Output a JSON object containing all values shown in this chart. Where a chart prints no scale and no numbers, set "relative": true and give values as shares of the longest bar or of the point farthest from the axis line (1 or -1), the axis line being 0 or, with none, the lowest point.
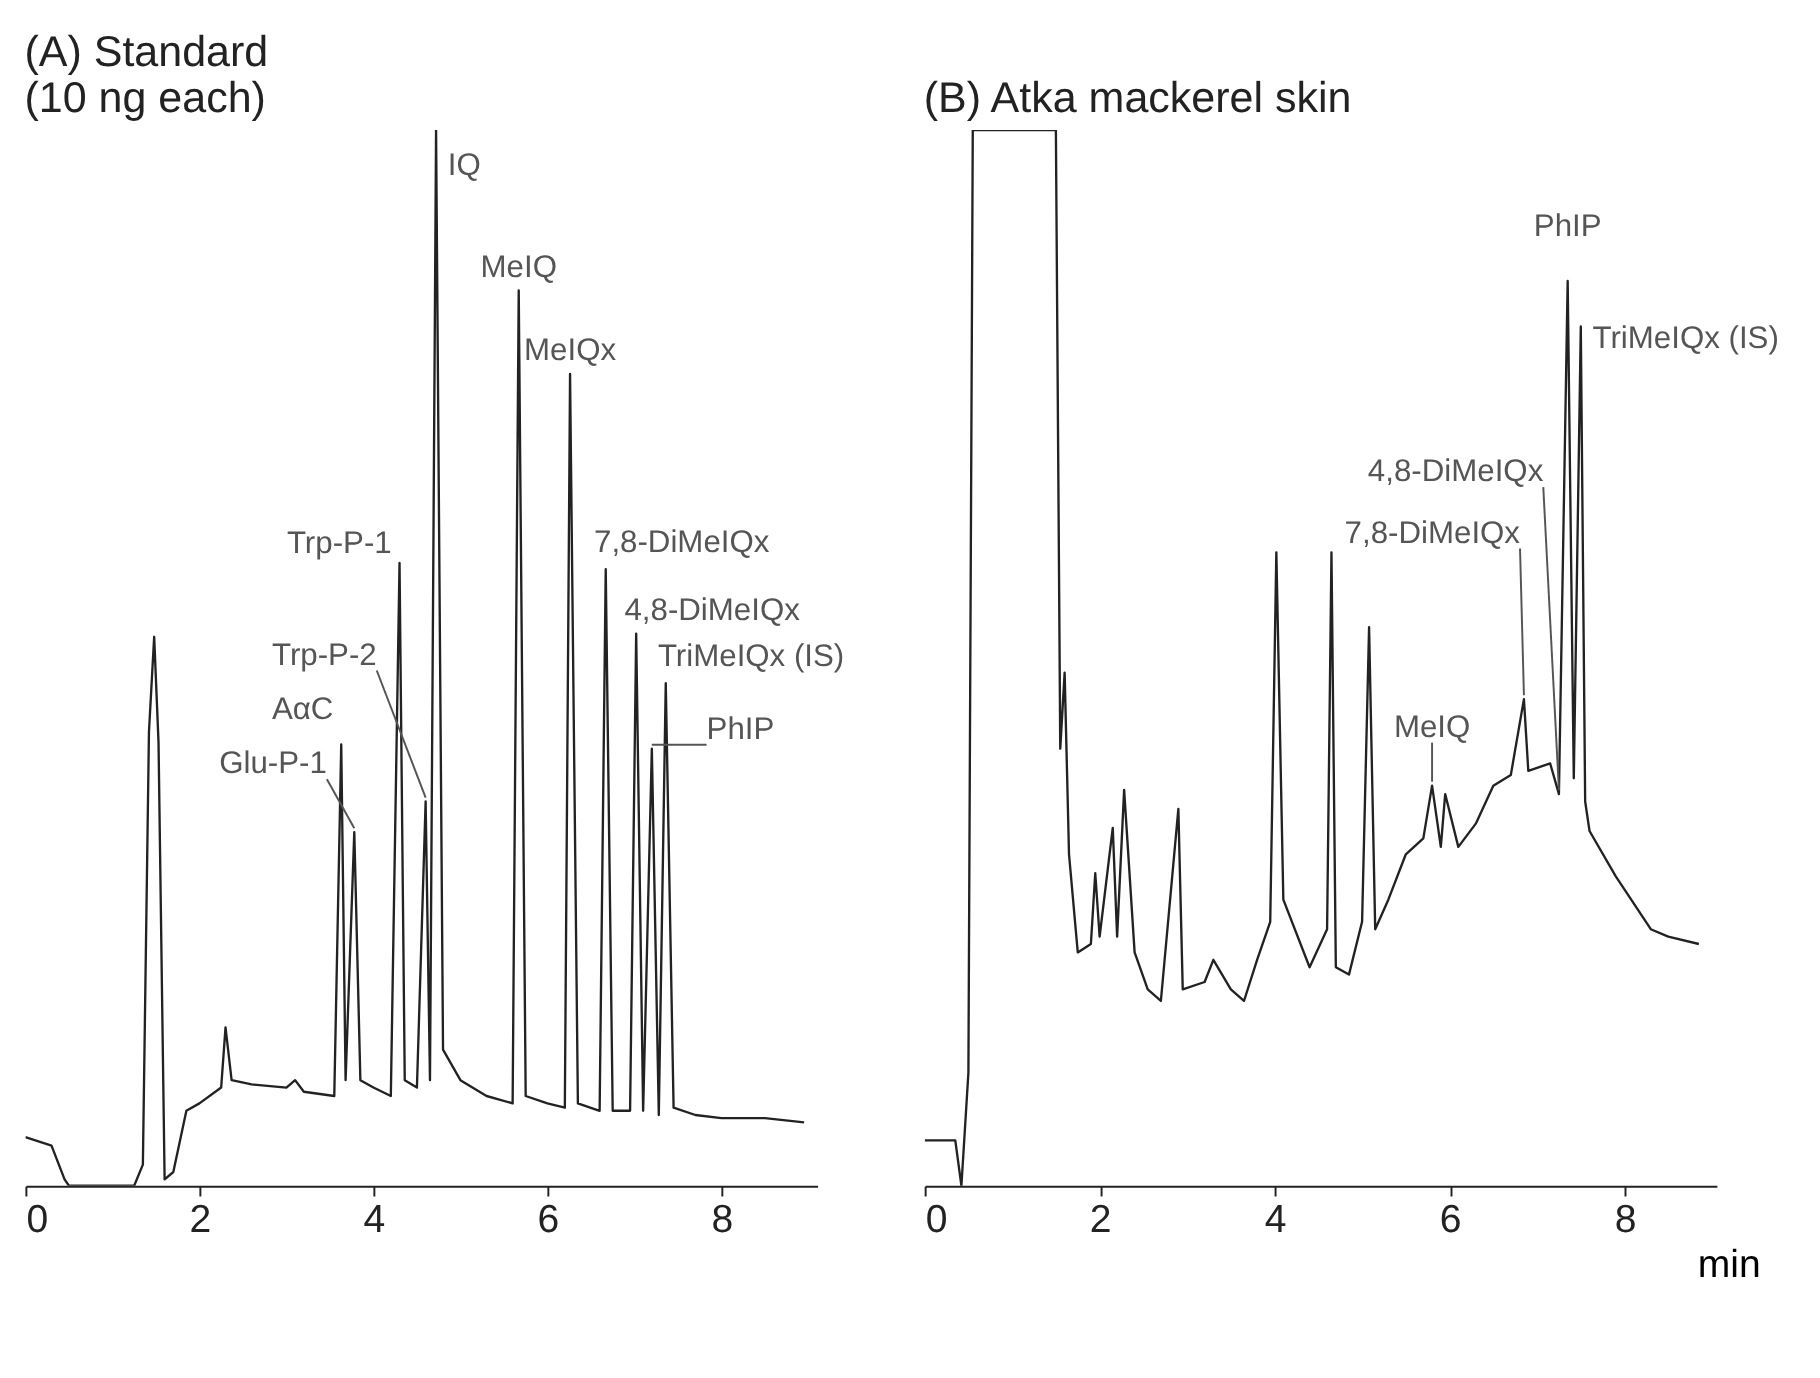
{
  "chart_data": [
    {
      "type": "line",
      "title": "(A)  Standard",
      "subtitle": "(10 ng each)",
      "relative": true,
      "xlim": [
        0,
        9.1
      ],
      "xticks": [
        0,
        2,
        4,
        6,
        8
      ],
      "grid": false,
      "marker": "none",
      "tick_labels": "x",
      "series": [
        {
          "color": "#222222",
          "x": [
            0,
            0.3,
            0.45,
            0.5,
            1.25,
            1.35,
            1.42,
            1.48,
            1.53,
            1.6,
            1.7,
            1.85,
            2.0,
            2.25,
            2.3,
            2.37,
            2.6,
            3.0,
            3.1,
            3.2,
            3.55,
            3.63,
            3.68,
            3.78,
            3.85,
            4.0,
            4.2,
            4.3,
            4.36,
            4.5,
            4.6,
            4.65,
            4.72,
            4.8,
            5.0,
            5.3,
            5.6,
            5.67,
            5.75,
            6.0,
            6.2,
            6.26,
            6.35,
            6.6,
            6.67,
            6.75,
            6.95,
            7.02,
            7.1,
            7.2,
            7.28,
            7.36,
            7.45,
            7.7,
            8.0,
            8.5,
            8.95
          ],
          "values": [
            0.046,
            0.038,
            0.006,
            0,
            0,
            0.02,
            0.43,
            0.52,
            0.42,
            0.006,
            0.013,
            0.071,
            0.078,
            0.093,
            0.15,
            0.1,
            0.096,
            0.093,
            0.1,
            0.089,
            0.085,
            0.418,
            0.1,
            0.335,
            0.1,
            0.093,
            0.085,
            0.59,
            0.1,
            0.093,
            0.364,
            0.1,
            1.0,
            0.129,
            0.1,
            0.085,
            0.078,
            0.848,
            0.085,
            0.078,
            0.074,
            0.769,
            0.078,
            0.071,
            0.584,
            0.071,
            0.071,
            0.523,
            0.071,
            0.414,
            0.067,
            0.476,
            0.074,
            0.067,
            0.064,
            0.064,
            0.06
          ]
        }
      ],
      "annotations": [
        {
          "text": "IQ",
          "x": 4.72,
          "y": 1.0
        },
        {
          "text": "MeIQ",
          "x": 5.67,
          "y": 0.848
        },
        {
          "text": "MeIQx",
          "x": 6.26,
          "y": 0.769
        },
        {
          "text": "Trp-P-1",
          "x": 4.3,
          "y": 0.59
        },
        {
          "text": "7,8-DiMeIQx",
          "x": 6.67,
          "y": 0.584
        },
        {
          "text": "Trp-P-2",
          "x": 4.6,
          "y": 0.364
        },
        {
          "text": "4,8-DiMeIQx",
          "x": 7.02,
          "y": 0.523
        },
        {
          "text": "TriMeIQx (IS)",
          "x": 7.36,
          "y": 0.476
        },
        {
          "text": "AαC",
          "x": 3.63,
          "y": 0.418
        },
        {
          "text": "PhIP",
          "x": 7.2,
          "y": 0.414
        },
        {
          "text": "Glu-P-1",
          "x": 3.78,
          "y": 0.335
        }
      ]
    },
    {
      "type": "line",
      "title": "(B) Atka mackerel skin",
      "xlabel": "min",
      "relative": true,
      "xlim": [
        0,
        9.05
      ],
      "xticks": [
        0,
        2,
        4,
        6,
        8
      ],
      "grid": false,
      "marker": "none",
      "tick_labels": "x",
      "series": [
        {
          "color": "#222222",
          "x": [
            0,
            0.35,
            0.42,
            0.5,
            0.55,
            0.6,
            1.5,
            1.55,
            1.6,
            1.65,
            1.75,
            1.9,
            1.95,
            2.0,
            2.15,
            2.2,
            2.28,
            2.4,
            2.55,
            2.7,
            2.9,
            2.95,
            3.2,
            3.3,
            3.5,
            3.65,
            3.8,
            3.95,
            4.02,
            4.1,
            4.4,
            4.6,
            4.65,
            4.7,
            4.85,
            5.0,
            5.08,
            5.15,
            5.3,
            5.5,
            5.7,
            5.8,
            5.9,
            5.95,
            6.1,
            6.3,
            6.5,
            6.7,
            6.85,
            6.9,
            7.15,
            7.25,
            7.35,
            7.42,
            7.5,
            7.55,
            7.6,
            7.9,
            8.3,
            8.5,
            8.85
          ],
          "values": [
            0.043,
            0.043,
            0,
            0.107,
            1.0,
            1.0,
            1.0,
            0.414,
            0.486,
            0.314,
            0.221,
            0.229,
            0.296,
            0.236,
            0.339,
            0.236,
            0.375,
            0.221,
            0.186,
            0.175,
            0.357,
            0.186,
            0.193,
            0.214,
            0.186,
            0.175,
            0.214,
            0.25,
            0.6,
            0.271,
            0.207,
            0.243,
            0.6,
            0.207,
            0.2,
            0.25,
            0.529,
            0.243,
            0.271,
            0.314,
            0.329,
            0.379,
            0.321,
            0.371,
            0.321,
            0.343,
            0.379,
            0.389,
            0.461,
            0.393,
            0.4,
            0.371,
            0.857,
            0.386,
            0.814,
            0.364,
            0.336,
            0.293,
            0.243,
            0.236,
            0.229
          ]
        }
      ],
      "annotations": [
        {
          "text": "PhIP",
          "x": 7.35,
          "y": 0.857
        },
        {
          "text": "4,8-DiMeIQx",
          "x": 7.25,
          "y": 0.371
        },
        {
          "text": "7,8-DiMeIQx",
          "x": 6.85,
          "y": 0.461
        },
        {
          "text": "TriMeIQx (IS)",
          "x": 7.5,
          "y": 0.814
        },
        {
          "text": "MeIQ",
          "x": 5.8,
          "y": 0.379
        }
      ]
    }
  ]
}
